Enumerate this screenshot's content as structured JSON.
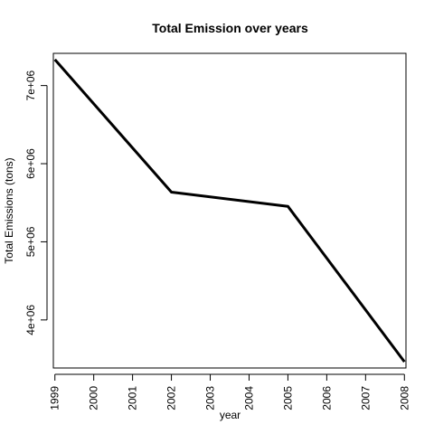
{
  "chart_data": {
    "type": "line",
    "title": "Total Emission over years",
    "xlabel": "year",
    "ylabel": "Total Emissions (tons)",
    "x": [
      1999,
      2002,
      2005,
      2008
    ],
    "y": [
      7332967,
      5635780,
      5454703,
      3464206
    ],
    "xlim": [
      1998.96,
      2008.04
    ],
    "ylim": [
      3384857,
      7412316
    ],
    "x_ticks": [
      "1999",
      "2000",
      "2001",
      "2002",
      "2003",
      "2004",
      "2005",
      "2006",
      "2007",
      "2008"
    ],
    "y_ticks": [
      {
        "value": 4000000,
        "label": "4e+06"
      },
      {
        "value": 5000000,
        "label": "5e+06"
      },
      {
        "value": 6000000,
        "label": "6e+06"
      },
      {
        "value": 7000000,
        "label": "7e+06"
      }
    ],
    "grid": false,
    "line_color": "#000000"
  }
}
